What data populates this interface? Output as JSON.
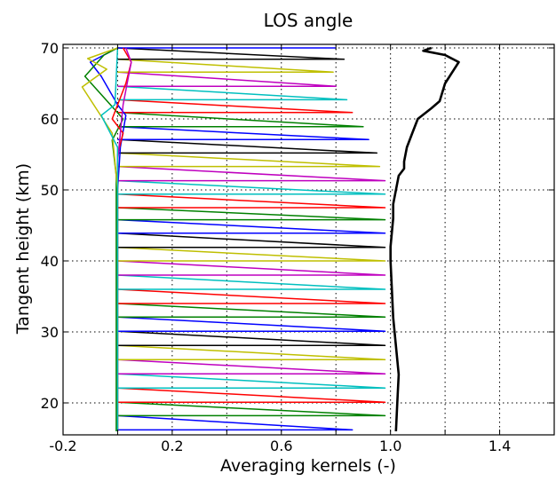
{
  "chart_data": {
    "type": "line",
    "title": "LOS angle",
    "xlabel": "Averaging kernels (-)",
    "ylabel": "Tangent height (km)",
    "xlim": [
      -0.2,
      1.6
    ],
    "ylim": [
      15.5,
      70.5
    ],
    "xticks": [
      -0.2,
      0.2,
      0.6,
      1.0,
      1.4
    ],
    "xtick_labels": [
      "-0.2",
      "0.2",
      "0.6",
      "1.0",
      "1.4"
    ],
    "xgrid": [
      0.0,
      0.2,
      0.4,
      0.6,
      0.8,
      1.0,
      1.2,
      1.4
    ],
    "yticks": [
      20,
      30,
      40,
      50,
      60,
      70
    ],
    "ytick_labels": [
      "20",
      "30",
      "40",
      "50",
      "60",
      "70"
    ],
    "grid": true,
    "legend": false,
    "kernel_colors": [
      "#0000ff",
      "#008000",
      "#ff0000",
      "#00bfbf",
      "#bf00bf",
      "#bfbf00",
      "#000000"
    ],
    "tangent_heights": [
      16.2,
      18.2,
      20.1,
      22.1,
      24.1,
      26.1,
      28.1,
      30.1,
      32.1,
      34.0,
      36.0,
      38.0,
      40.0,
      41.9,
      43.9,
      45.8,
      47.5,
      49.4,
      51.3,
      53.3,
      55.2,
      57.1,
      58.9,
      60.9,
      62.7,
      64.6,
      66.6,
      68.4,
      70.0
    ],
    "kernel_peaks": [
      0.86,
      0.98,
      0.98,
      0.98,
      0.98,
      0.98,
      0.98,
      0.98,
      0.98,
      0.98,
      0.98,
      0.98,
      0.98,
      0.98,
      0.98,
      0.98,
      0.98,
      0.98,
      0.98,
      0.96,
      0.95,
      0.92,
      0.9,
      0.86,
      0.84,
      0.8,
      0.79,
      0.83,
      0.8
    ],
    "series": [
      {
        "color": "#000000",
        "x": [
          1.02,
          1.025,
          1.03,
          1.02,
          1.01,
          1.005,
          1.0,
          1.0,
          1.005,
          1.01,
          1.01,
          1.02,
          1.03,
          1.05,
          1.05,
          1.06,
          1.08,
          1.1,
          1.15,
          1.18,
          1.2,
          1.25,
          1.2,
          1.12,
          1.15
        ],
        "y": [
          16.0,
          20.0,
          24.0,
          28.0,
          32.0,
          36.0,
          40.0,
          42.0,
          44.0,
          46.0,
          48.0,
          50.0,
          52.0,
          53.0,
          54.0,
          56.0,
          58.0,
          60.0,
          61.5,
          62.5,
          65.0,
          68.0,
          69.0,
          69.6,
          70.0
        ]
      }
    ]
  }
}
